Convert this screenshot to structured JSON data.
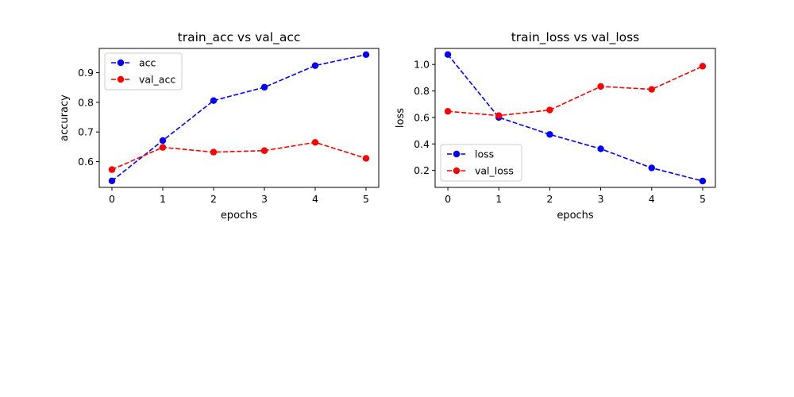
{
  "chart_data": [
    {
      "type": "line",
      "title": "train_acc vs val_acc",
      "xlabel": "epochs",
      "ylabel": "accuracy",
      "x": [
        0,
        1,
        2,
        3,
        4,
        5
      ],
      "xlim": [
        -0.25,
        5.25
      ],
      "ylim": [
        0.513,
        0.982
      ],
      "xticks": [
        0,
        1,
        2,
        3,
        4,
        5
      ],
      "yticks": [
        0.6,
        0.7,
        0.8,
        0.9
      ],
      "ytick_labels": [
        "0.6",
        "0.7",
        "0.8",
        "0.9"
      ],
      "grid": false,
      "legend_position": "upper left",
      "series": [
        {
          "name": "acc",
          "color": "#0000ff",
          "linestyle": "dashed",
          "marker": "circle",
          "values": [
            0.535,
            0.671,
            0.806,
            0.851,
            0.924,
            0.961
          ]
        },
        {
          "name": "val_acc",
          "color": "#ff0000",
          "linestyle": "dashed",
          "marker": "circle",
          "values": [
            0.573,
            0.648,
            0.632,
            0.637,
            0.665,
            0.611
          ]
        }
      ]
    },
    {
      "type": "line",
      "title": "train_loss vs val_loss",
      "xlabel": "epochs",
      "ylabel": "loss",
      "x": [
        0,
        1,
        2,
        3,
        4,
        5
      ],
      "xlim": [
        -0.25,
        5.25
      ],
      "ylim": [
        0.072,
        1.121
      ],
      "xticks": [
        0,
        1,
        2,
        3,
        4,
        5
      ],
      "yticks": [
        0.2,
        0.4,
        0.6,
        0.8,
        1.0
      ],
      "ytick_labels": [
        "0.2",
        "0.4",
        "0.6",
        "0.8",
        "1.0"
      ],
      "grid": false,
      "legend_position": "lower left",
      "series": [
        {
          "name": "loss",
          "color": "#0000ff",
          "linestyle": "dashed",
          "marker": "circle",
          "values": [
            1.075,
            0.6,
            0.472,
            0.363,
            0.219,
            0.12
          ]
        },
        {
          "name": "val_loss",
          "color": "#ff0000",
          "linestyle": "dashed",
          "marker": "circle",
          "values": [
            0.646,
            0.614,
            0.656,
            0.834,
            0.812,
            0.987
          ]
        }
      ]
    }
  ]
}
